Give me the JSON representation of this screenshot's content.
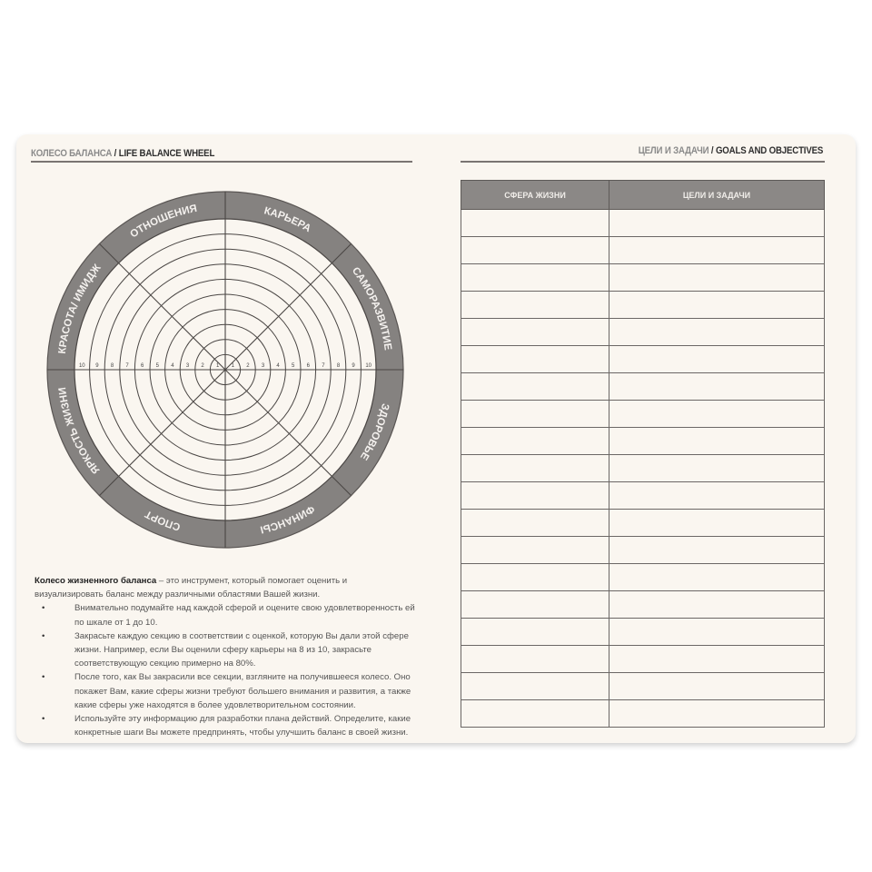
{
  "left_page": {
    "header_ru": "КОЛЕСО БАЛАНСА",
    "header_sep": " / ",
    "header_en": "LIFE BALANCE WHEEL",
    "wheel": {
      "sectors": [
        "КАРЬЕРА",
        "САМОРАЗВИТИЕ",
        "ЗДОРОВЬЕ",
        "ФИНАНСЫ",
        "СПОРТ",
        "ЯРКОСТЬ ЖИЗНИ",
        "КРАСОТА/ ИМИДЖ",
        "ОТНОШЕНИЯ"
      ],
      "scale_max": 10,
      "scale_left": [
        "10",
        "9",
        "8",
        "7",
        "6",
        "5",
        "4",
        "3",
        "2",
        "1"
      ],
      "scale_right": [
        "1",
        "2",
        "3",
        "4",
        "5",
        "6",
        "7",
        "8",
        "9",
        "10"
      ],
      "ring_color": "#858280",
      "line_color": "#4a4644"
    },
    "description": {
      "lead_bold": "Колесо жизненного баланса",
      "lead_rest": " – это инструмент, который помогает оценить и визуализировать баланс между различными областями Вашей жизни.",
      "bullets": [
        "Внимательно подумайте над каждой сферой и оцените свою удовлетворенность ей по шкале от 1 до 10.",
        "Закрасьте каждую секцию в соответствии с оценкой, которую Вы дали этой сфере жизни. Например, если Вы оценили сферу карьеры на 8 из 10, закрасьте соответствующую секцию примерно на 80%.",
        "После того, как Вы закрасили все секции, взгляните на получившееся колесо. Оно покажет Вам, какие сферы жизни требуют большего внимания и развития, а также какие сферы уже находятся в более удовлетворительном состоянии.",
        "Используйте эту информацию для разработки плана действий. Определите, какие конкретные шаги Вы можете предпринять, чтобы улучшить баланс в своей жизни."
      ]
    }
  },
  "right_page": {
    "header_ru": "ЦЕЛИ И ЗАДАЧИ",
    "header_sep": " / ",
    "header_en": "GOALS AND OBJECTIVES",
    "table": {
      "columns": [
        "СФЕРА ЖИЗНИ",
        "ЦЕЛИ И ЗАДАЧИ"
      ],
      "empty_rows": 19,
      "header_color": "#8b8886"
    }
  }
}
